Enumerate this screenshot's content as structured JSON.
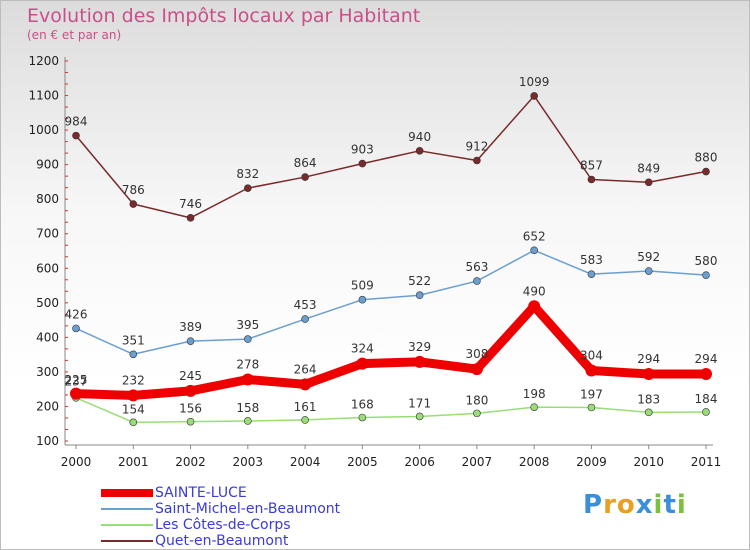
{
  "header": {
    "title": "Evolution des Impôts locaux par Habitant",
    "subtitle": "(en € et par an)"
  },
  "logo": {
    "text": "Proxiti"
  },
  "colors": {
    "sainte_luce": "#ee0000",
    "saint_michel": "#6a9fd0",
    "cotes_de_corps": "#99dd77",
    "quet": "#7a2a2a",
    "title": "#c8508a",
    "legend_text": "#3b3bd6"
  },
  "chart_data": {
    "type": "line",
    "title": "Evolution des Impôts locaux par Habitant",
    "subtitle": "(en € et par an)",
    "xlabel": "",
    "ylabel": "",
    "categories": [
      "2000",
      "2001",
      "2002",
      "2003",
      "2004",
      "2005",
      "2006",
      "2007",
      "2008",
      "2009",
      "2010",
      "2011"
    ],
    "ylim": [
      100,
      1200
    ],
    "yticks": [
      "100",
      "200",
      "300",
      "400",
      "500",
      "600",
      "700",
      "800",
      "900",
      "1000",
      "1100",
      "1200"
    ],
    "grid": false,
    "legend_position": "bottom-left",
    "series": [
      {
        "name": "SAINTE-LUCE",
        "color": "#ee0000",
        "values": [
          237,
          232,
          245,
          278,
          264,
          324,
          329,
          308,
          490,
          304,
          294,
          294
        ]
      },
      {
        "name": "Saint-Michel-en-Beaumont",
        "color": "#6a9fd0",
        "values": [
          426,
          351,
          389,
          395,
          453,
          509,
          522,
          563,
          652,
          583,
          592,
          580
        ]
      },
      {
        "name": "Les Côtes-de-Corps",
        "color": "#99dd77",
        "values": [
          225,
          154,
          156,
          158,
          161,
          168,
          171,
          180,
          198,
          197,
          183,
          184
        ]
      },
      {
        "name": "Quet-en-Beaumont",
        "color": "#7a2a2a",
        "values": [
          984,
          786,
          746,
          832,
          864,
          903,
          940,
          912,
          1099,
          857,
          849,
          880
        ]
      }
    ]
  }
}
